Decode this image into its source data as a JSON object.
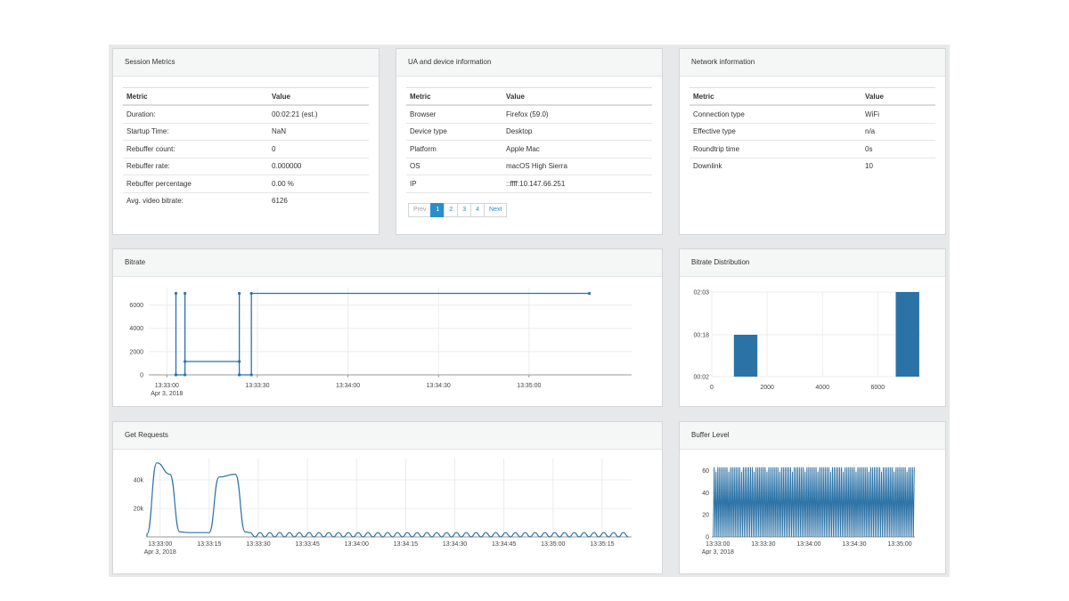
{
  "session": {
    "title": "Session Metrics",
    "headers": [
      "Metric",
      "Value"
    ],
    "rows": [
      [
        "Duration:",
        "00:02:21 (est.)"
      ],
      [
        "Startup Time:",
        "NaN"
      ],
      [
        "Rebuffer count:",
        "0"
      ],
      [
        "Rebuffer rate:",
        "0.000000"
      ],
      [
        "Rebuffer percentage",
        "0.00 %"
      ],
      [
        "Avg. video bitrate:",
        "6126"
      ]
    ]
  },
  "ua": {
    "title": "UA and device information",
    "headers": [
      "Metric",
      "Value"
    ],
    "rows": [
      [
        "Browser",
        "Firefox (59.0)"
      ],
      [
        "Device type",
        "Desktop"
      ],
      [
        "Platform",
        "Apple Mac"
      ],
      [
        "OS",
        "macOS High Sierra"
      ],
      [
        "IP",
        "::ffff:10.147.66.251"
      ]
    ],
    "pager": {
      "prev": "Prev",
      "pages": [
        "1",
        "2",
        "3",
        "4"
      ],
      "active": "1",
      "next": "Next"
    }
  },
  "network": {
    "title": "Network information",
    "headers": [
      "Metric",
      "Value"
    ],
    "rows": [
      [
        "Connection type",
        "WiFi"
      ],
      [
        "Effective type",
        "n/a"
      ],
      [
        "Roundtrip time",
        "0s"
      ],
      [
        "Downlink",
        "10"
      ]
    ]
  },
  "colors": {
    "series": "#2b72a6",
    "grid": "#ececec",
    "axis": "#999999"
  },
  "chart_data": [
    {
      "id": "bitrate",
      "title": "Bitrate",
      "type": "line",
      "x_ticks": [
        "13:33:00",
        "13:33:30",
        "13:34:00",
        "13:34:30",
        "13:35:00"
      ],
      "date_label": "Apr 3, 2018",
      "x_range": [
        "13:32:54",
        "13:35:34"
      ],
      "ylim": [
        0,
        7500
      ],
      "y_ticks": [
        0,
        2000,
        4000,
        6000
      ],
      "points": [
        [
          "13:33:03",
          0
        ],
        [
          "13:33:03",
          7000
        ],
        [
          "13:33:03",
          0
        ],
        [
          "13:33:06",
          0
        ],
        [
          "13:33:06",
          7000
        ],
        [
          "13:33:06",
          1150
        ],
        [
          "13:33:24",
          1150
        ],
        [
          "13:33:24",
          0
        ],
        [
          "13:33:24",
          7000
        ],
        [
          "13:33:24",
          0
        ],
        [
          "13:33:28",
          0
        ],
        [
          "13:33:28",
          7000
        ],
        [
          "13:35:20",
          7000
        ]
      ]
    },
    {
      "id": "bitrate-dist",
      "title": "Bitrate Distribution",
      "type": "bar",
      "x_ticks": [
        "0",
        "2000",
        "4000",
        "6000"
      ],
      "xlim": [
        0,
        7600
      ],
      "y_ticks": [
        "00:02",
        "00:18",
        "02:03"
      ],
      "bars": [
        {
          "x0": 800,
          "x1": 1650,
          "value": "00:18"
        },
        {
          "x0": 6650,
          "x1": 7500,
          "value": "02:03"
        }
      ]
    },
    {
      "id": "get-requests",
      "title": "Get Requests",
      "type": "area",
      "x_ticks": [
        "13:33:00",
        "13:33:15",
        "13:33:30",
        "13:33:45",
        "13:34:00",
        "13:34:15",
        "13:34:30",
        "13:34:45",
        "13:35:00",
        "13:35:15"
      ],
      "date_label": "Apr 3, 2018",
      "x_range": [
        "13:32:56",
        "13:35:24"
      ],
      "y_ticks": [
        "20k",
        "40k"
      ],
      "ylim": [
        0,
        55000
      ],
      "peaks": [
        [
          "13:32:56",
          2000
        ],
        [
          "13:32:59",
          52000
        ],
        [
          "13:33:03",
          44000
        ],
        [
          "13:33:06",
          3500
        ],
        [
          "13:33:09",
          3000
        ],
        [
          "13:33:12",
          3000
        ],
        [
          "13:33:15",
          3000
        ],
        [
          "13:33:18",
          42000
        ],
        [
          "13:33:23",
          44000
        ],
        [
          "13:33:26",
          3500
        ]
      ],
      "ripple": {
        "start": "13:33:26",
        "end": "13:35:24",
        "period_s": 3,
        "amplitude": 3000
      }
    },
    {
      "id": "buffer-level",
      "title": "Buffer Level",
      "type": "line",
      "x_ticks": [
        "13:33:00",
        "13:33:30",
        "13:34:00",
        "13:34:30",
        "13:35:00"
      ],
      "date_label": "Apr 3, 2018",
      "x_range": [
        "13:32:56",
        "13:35:10"
      ],
      "y_ticks": [
        0,
        20,
        40,
        60
      ],
      "ylim": [
        0,
        66
      ],
      "oscillation": {
        "start": "13:32:57",
        "end": "13:35:10",
        "min": 0,
        "max": 63,
        "period_s": 1.2
      }
    }
  ]
}
